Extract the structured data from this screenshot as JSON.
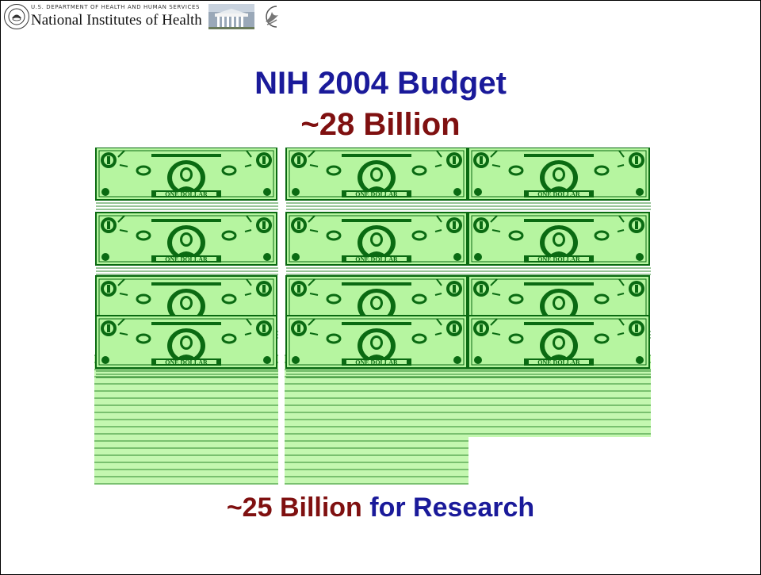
{
  "header": {
    "agency_line": "U.S. DEPARTMENT OF HEALTH AND HUMAN SERVICES",
    "agency_name": "National Institutes of Health"
  },
  "title": "NIH 2004 Budget",
  "subtitle": "~28 Billion",
  "bill_label": "ONE DOLLAR",
  "footer": {
    "amount": "~25 Billion",
    "suffix": "for Research"
  },
  "colors": {
    "title_blue": "#1a1a9a",
    "amount_red": "#7f1010",
    "bill_green": "#b6f5a0",
    "bill_dark": "#0a6a12"
  },
  "icons": [
    "nih-seal-icon",
    "building-icon",
    "hhs-eagle-icon",
    "dollar-bill-icon"
  ]
}
